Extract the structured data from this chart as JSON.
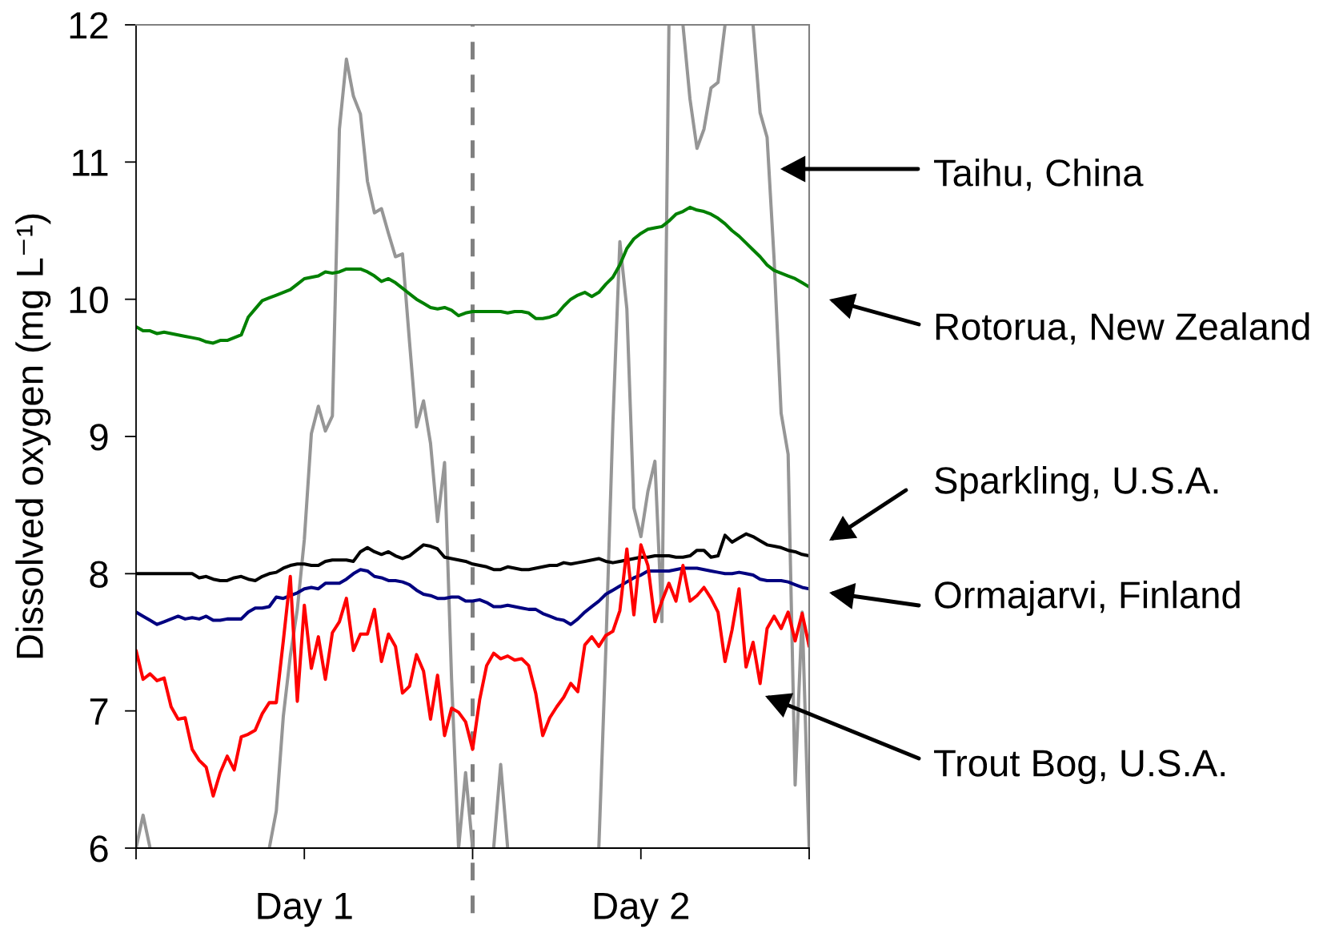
{
  "chart_data": {
    "type": "line",
    "ylabel": "Dissolved oxygen (mg L⁻¹)",
    "categories": [
      null,
      null,
      null,
      null,
      null,
      null,
      null,
      null,
      null,
      null,
      null,
      null,
      null,
      null,
      null,
      null,
      null,
      null,
      null,
      null,
      null,
      null,
      null,
      null,
      "Day 1",
      null,
      null,
      null,
      null,
      null,
      null,
      null,
      null,
      null,
      null,
      null,
      null,
      null,
      null,
      null,
      null,
      null,
      null,
      null,
      null,
      null,
      null,
      null,
      null,
      null,
      null,
      null,
      null,
      null,
      null,
      null,
      null,
      null,
      null,
      null,
      null,
      null,
      null,
      null,
      null,
      null,
      null,
      null,
      null,
      null,
      null,
      null,
      "Day 2",
      null,
      null,
      null,
      null,
      null,
      null,
      null,
      null,
      null,
      null,
      null,
      null,
      null,
      null,
      null,
      null,
      null,
      null,
      null,
      null,
      null,
      null,
      null,
      null
    ],
    "ylim": [
      6,
      12
    ],
    "yticks": [
      6,
      7,
      8,
      9,
      10,
      11,
      12
    ],
    "line_style": "solid",
    "annotations": [
      "Taihu, China",
      "Rotorua, New Zealand",
      "Sparkling, U.S.A.",
      "Ormajarvi, Finland",
      "Trout Bog, U.S.A."
    ],
    "series": [
      {
        "color": "#969696",
        "values": [
          6.0,
          6.24,
          6.0,
          null,
          null,
          null,
          null,
          null,
          null,
          null,
          null,
          null,
          null,
          null,
          null,
          null,
          null,
          null,
          null,
          6.0,
          6.27,
          6.96,
          7.4,
          7.74,
          8.25,
          9.02,
          9.22,
          9.04,
          9.15,
          11.24,
          11.75,
          11.48,
          11.35,
          10.86,
          10.63,
          10.66,
          10.48,
          10.31,
          10.33,
          9.69,
          9.07,
          9.26,
          8.95,
          8.38,
          8.81,
          7.23,
          6.0,
          6.55,
          6.0,
          null,
          null,
          6.0,
          6.61,
          6.0,
          null,
          null,
          null,
          null,
          null,
          null,
          null,
          null,
          null,
          null,
          null,
          null,
          6.0,
          7.45,
          9.09,
          10.42,
          9.93,
          8.48,
          8.27,
          8.6,
          8.82,
          7.65,
          12.0,
          null,
          12.0,
          11.46,
          11.1,
          11.24,
          11.54,
          11.58,
          12.0,
          null,
          null,
          null,
          12.0,
          11.36,
          11.18,
          10.29,
          9.17,
          8.87,
          6.46,
          7.72,
          6.0
        ]
      },
      {
        "color": "#008000",
        "values": [
          9.8,
          9.77,
          9.77,
          9.75,
          9.76,
          9.75,
          9.74,
          9.73,
          9.72,
          9.71,
          9.69,
          9.68,
          9.7,
          9.7,
          9.72,
          9.74,
          9.87,
          9.93,
          9.99,
          10.01,
          10.03,
          10.05,
          10.07,
          10.11,
          10.15,
          10.16,
          10.17,
          10.2,
          10.19,
          10.2,
          10.22,
          10.22,
          10.22,
          10.2,
          10.17,
          10.13,
          10.15,
          10.12,
          10.08,
          10.04,
          10.0,
          9.97,
          9.94,
          9.93,
          9.94,
          9.92,
          9.88,
          9.9,
          9.91,
          9.91,
          9.91,
          9.91,
          9.91,
          9.9,
          9.91,
          9.91,
          9.9,
          9.86,
          9.86,
          9.87,
          9.89,
          9.95,
          10.0,
          10.03,
          10.05,
          10.02,
          10.05,
          10.11,
          10.16,
          10.25,
          10.37,
          10.44,
          10.48,
          10.51,
          10.52,
          10.53,
          10.57,
          10.62,
          10.64,
          10.67,
          10.65,
          10.64,
          10.62,
          10.59,
          10.55,
          10.5,
          10.46,
          10.41,
          10.36,
          10.31,
          10.25,
          10.21,
          10.19,
          10.17,
          10.15,
          10.12,
          10.09
        ]
      },
      {
        "color": "#000000",
        "values": [
          8.0,
          8.0,
          8.0,
          8.0,
          8.0,
          8.0,
          8.0,
          8.0,
          8.0,
          7.97,
          7.98,
          7.96,
          7.95,
          7.95,
          7.97,
          7.98,
          7.96,
          7.95,
          7.98,
          8.0,
          8.01,
          8.04,
          8.06,
          8.07,
          8.07,
          8.06,
          8.06,
          8.09,
          8.1,
          8.1,
          8.1,
          8.09,
          8.16,
          8.19,
          8.16,
          8.14,
          8.16,
          8.13,
          8.11,
          8.13,
          8.17,
          8.21,
          8.2,
          8.18,
          8.12,
          8.11,
          8.1,
          8.09,
          8.07,
          8.06,
          8.05,
          8.03,
          8.03,
          8.05,
          8.04,
          8.03,
          8.03,
          8.04,
          8.05,
          8.06,
          8.06,
          8.08,
          8.07,
          8.08,
          8.09,
          8.1,
          8.11,
          8.09,
          8.08,
          8.09,
          8.1,
          8.11,
          8.12,
          8.12,
          8.13,
          8.13,
          8.13,
          8.12,
          8.12,
          8.13,
          8.17,
          8.17,
          8.12,
          8.13,
          8.28,
          8.23,
          8.26,
          8.29,
          8.27,
          8.24,
          8.21,
          8.2,
          8.19,
          8.17,
          8.16,
          8.14,
          8.13
        ]
      },
      {
        "color": "#000080",
        "values": [
          7.72,
          7.69,
          7.66,
          7.63,
          7.65,
          7.67,
          7.69,
          7.67,
          7.68,
          7.67,
          7.69,
          7.66,
          7.66,
          7.67,
          7.67,
          7.67,
          7.72,
          7.75,
          7.75,
          7.76,
          7.83,
          7.82,
          7.84,
          7.86,
          7.89,
          7.9,
          7.89,
          7.93,
          7.93,
          7.93,
          7.96,
          8.0,
          8.03,
          8.02,
          7.98,
          7.97,
          7.95,
          7.95,
          7.94,
          7.92,
          7.88,
          7.85,
          7.84,
          7.82,
          7.82,
          7.83,
          7.83,
          7.8,
          7.8,
          7.81,
          7.79,
          7.76,
          7.76,
          7.77,
          7.76,
          7.75,
          7.74,
          7.74,
          7.71,
          7.69,
          7.67,
          7.66,
          7.63,
          7.67,
          7.72,
          7.76,
          7.8,
          7.85,
          7.88,
          7.91,
          7.94,
          7.97,
          7.99,
          8.02,
          8.02,
          8.02,
          8.02,
          8.03,
          8.04,
          8.04,
          8.04,
          8.03,
          8.02,
          8.01,
          8.0,
          8.0,
          8.01,
          8.0,
          7.99,
          7.96,
          7.95,
          7.95,
          7.95,
          7.94,
          7.92,
          7.9,
          7.89
        ]
      },
      {
        "color": "#ff0000",
        "values": [
          7.44,
          7.23,
          7.27,
          7.22,
          7.24,
          7.03,
          6.94,
          6.95,
          6.72,
          6.64,
          6.59,
          6.38,
          6.55,
          6.67,
          6.57,
          6.81,
          6.83,
          6.86,
          6.98,
          7.06,
          7.06,
          7.51,
          7.98,
          7.07,
          7.77,
          7.31,
          7.54,
          7.23,
          7.57,
          7.65,
          7.82,
          7.44,
          7.56,
          7.56,
          7.74,
          7.36,
          7.56,
          7.47,
          7.13,
          7.18,
          7.41,
          7.29,
          6.94,
          7.26,
          6.82,
          7.02,
          6.99,
          6.92,
          6.72,
          7.08,
          7.33,
          7.42,
          7.38,
          7.4,
          7.37,
          7.38,
          7.33,
          7.13,
          6.82,
          6.95,
          7.03,
          7.1,
          7.2,
          7.14,
          7.48,
          7.54,
          7.47,
          7.55,
          7.58,
          7.73,
          8.18,
          7.7,
          8.21,
          8.06,
          7.65,
          7.8,
          7.93,
          7.8,
          8.06,
          7.8,
          7.84,
          7.9,
          7.82,
          7.72,
          7.36,
          7.59,
          7.89,
          7.32,
          7.5,
          7.2,
          7.6,
          7.69,
          7.6,
          7.72,
          7.51,
          7.71,
          7.47
        ]
      }
    ]
  }
}
